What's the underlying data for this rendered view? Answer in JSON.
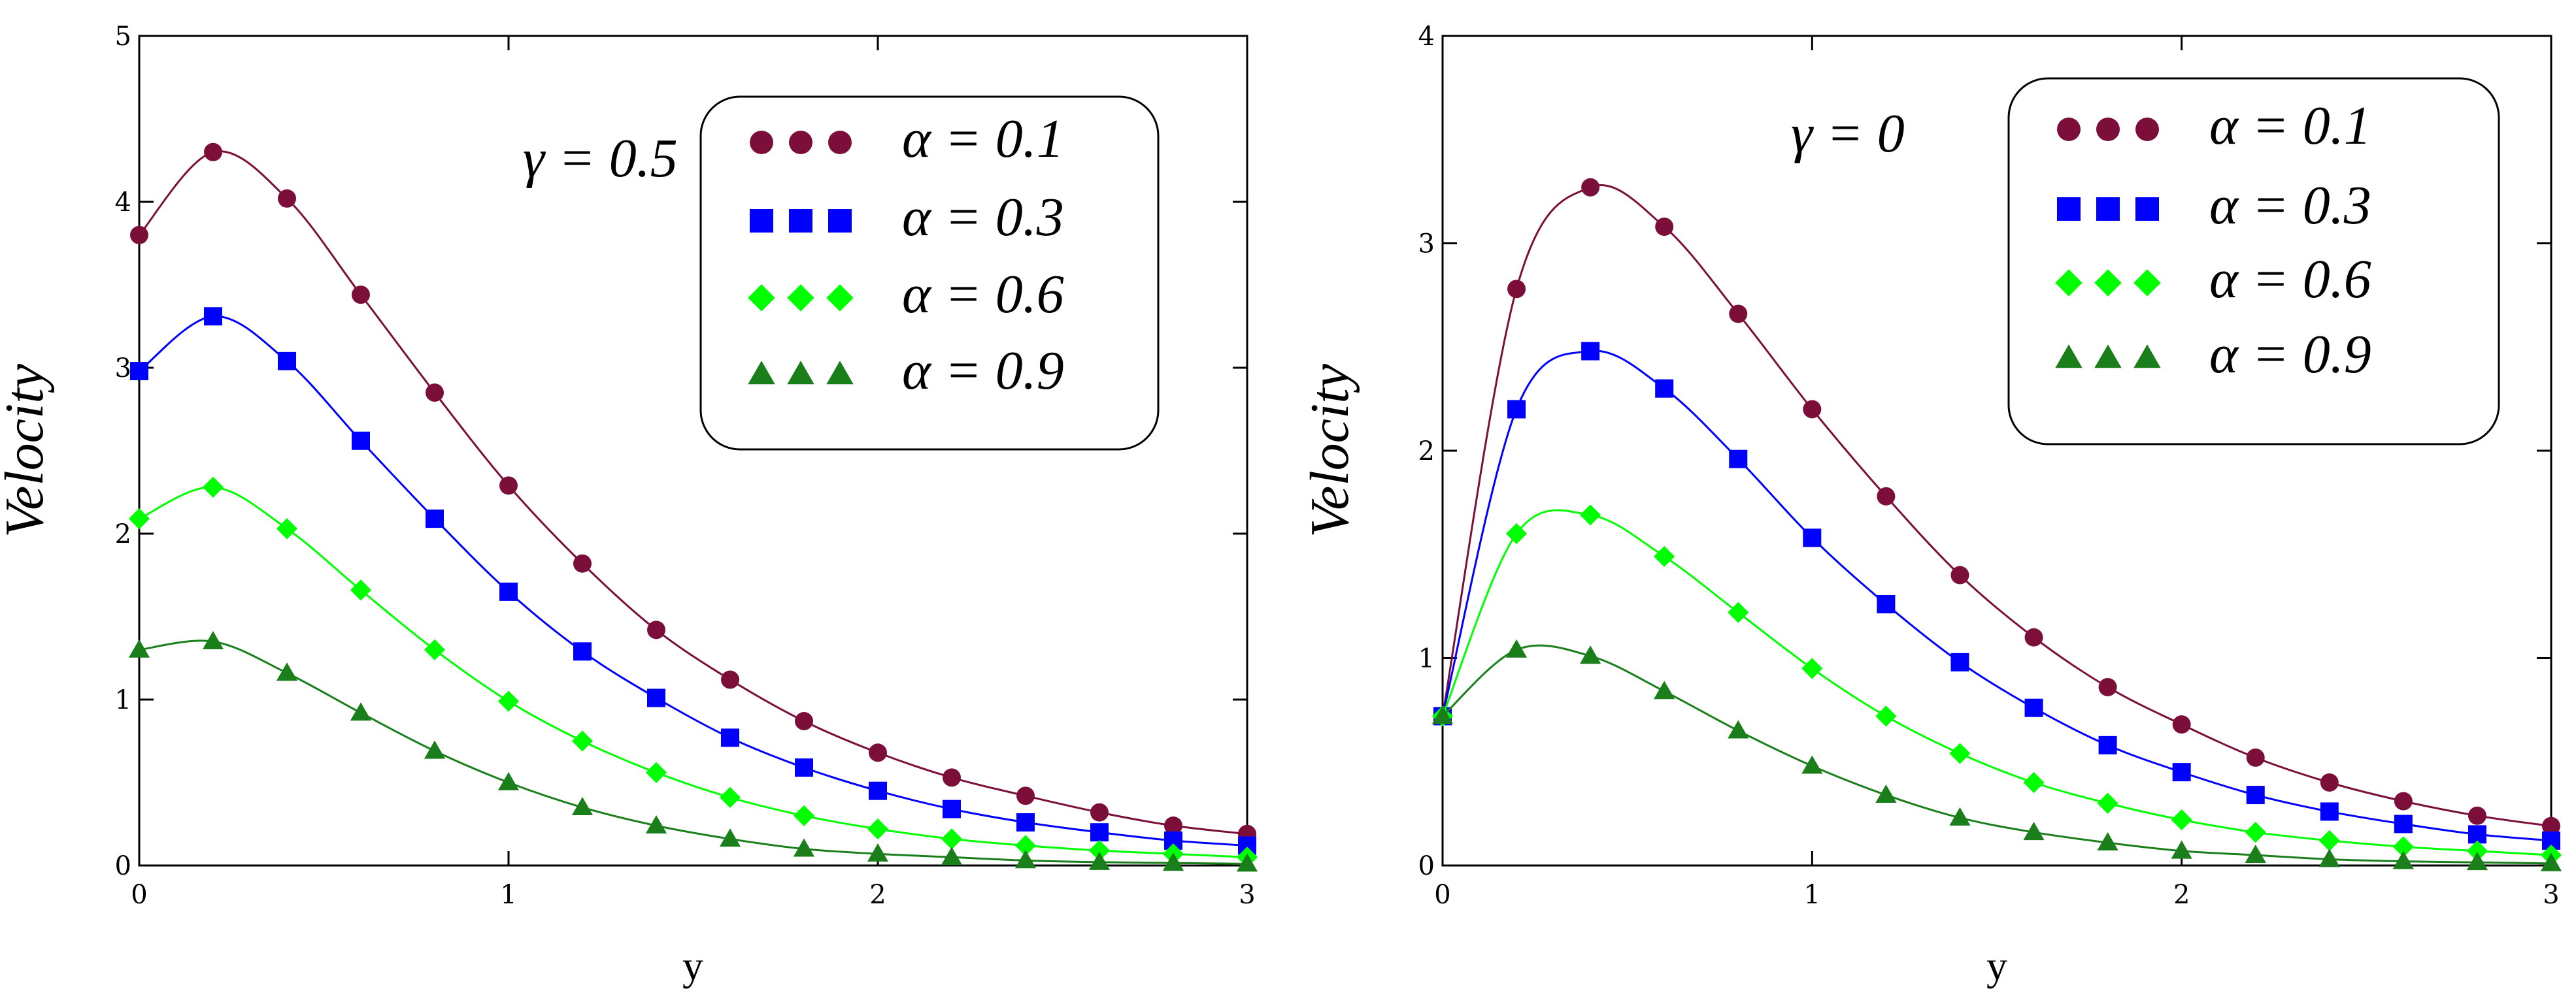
{
  "chart_data": [
    {
      "type": "line",
      "panel": "left",
      "annotation": "γ = 0.5",
      "xlabel": "y",
      "ylabel": "Velocity",
      "xlim": [
        0,
        3
      ],
      "ylim": [
        0,
        5
      ],
      "xticks": [
        "0",
        "1",
        "2",
        "3"
      ],
      "yticks": [
        "0",
        "1",
        "2",
        "3",
        "4",
        "5"
      ],
      "legend_position": "top-right",
      "series": [
        {
          "name": "α = 0.1",
          "marker": "circle",
          "color": "#7b0f3a",
          "x": [
            0,
            0.2,
            0.4,
            0.6,
            0.8,
            1.0,
            1.2,
            1.4,
            1.6,
            1.8,
            2.0,
            2.2,
            2.4,
            2.6,
            2.8,
            3.0
          ],
          "y": [
            3.8,
            4.3,
            4.02,
            3.44,
            2.85,
            2.29,
            1.82,
            1.42,
            1.12,
            0.87,
            0.68,
            0.53,
            0.42,
            0.32,
            0.24,
            0.19
          ]
        },
        {
          "name": "α = 0.3",
          "marker": "square",
          "color": "#0000ff",
          "x": [
            0,
            0.2,
            0.4,
            0.6,
            0.8,
            1.0,
            1.2,
            1.4,
            1.6,
            1.8,
            2.0,
            2.2,
            2.4,
            2.6,
            2.8,
            3.0
          ],
          "y": [
            2.98,
            3.31,
            3.04,
            2.56,
            2.09,
            1.65,
            1.29,
            1.01,
            0.77,
            0.59,
            0.45,
            0.34,
            0.26,
            0.2,
            0.15,
            0.12
          ]
        },
        {
          "name": "α = 0.6",
          "marker": "diamond",
          "color": "#00ff00",
          "x": [
            0,
            0.2,
            0.4,
            0.6,
            0.8,
            1.0,
            1.2,
            1.4,
            1.6,
            1.8,
            2.0,
            2.2,
            2.4,
            2.6,
            2.8,
            3.0
          ],
          "y": [
            2.09,
            2.28,
            2.03,
            1.66,
            1.3,
            0.99,
            0.75,
            0.56,
            0.41,
            0.3,
            0.22,
            0.16,
            0.12,
            0.09,
            0.07,
            0.05
          ]
        },
        {
          "name": "α = 0.9",
          "marker": "triangle",
          "color": "#1a7f1a",
          "x": [
            0,
            0.2,
            0.4,
            0.6,
            0.8,
            1.0,
            1.2,
            1.4,
            1.6,
            1.8,
            2.0,
            2.2,
            2.4,
            2.6,
            2.8,
            3.0
          ],
          "y": [
            1.3,
            1.35,
            1.16,
            0.92,
            0.69,
            0.5,
            0.35,
            0.24,
            0.16,
            0.1,
            0.07,
            0.05,
            0.03,
            0.02,
            0.015,
            0.01
          ]
        }
      ]
    },
    {
      "type": "line",
      "panel": "right",
      "annotation": "γ = 0",
      "xlabel": "y",
      "ylabel": "Velocity",
      "xlim": [
        0,
        3
      ],
      "ylim": [
        0,
        4
      ],
      "xticks": [
        "0",
        "1",
        "2",
        "3"
      ],
      "yticks": [
        "0",
        "1",
        "2",
        "3",
        "4"
      ],
      "legend_position": "top-right",
      "series": [
        {
          "name": "α = 0.1",
          "marker": "circle",
          "color": "#7b0f3a",
          "x": [
            0,
            0.2,
            0.4,
            0.6,
            0.8,
            1.0,
            1.2,
            1.4,
            1.6,
            1.8,
            2.0,
            2.2,
            2.4,
            2.6,
            2.8,
            3.0
          ],
          "y": [
            0.72,
            2.78,
            3.27,
            3.08,
            2.66,
            2.2,
            1.78,
            1.4,
            1.1,
            0.86,
            0.68,
            0.52,
            0.4,
            0.31,
            0.24,
            0.19
          ]
        },
        {
          "name": "α = 0.3",
          "marker": "square",
          "color": "#0000ff",
          "x": [
            0,
            0.2,
            0.4,
            0.6,
            0.8,
            1.0,
            1.2,
            1.4,
            1.6,
            1.8,
            2.0,
            2.2,
            2.4,
            2.6,
            2.8,
            3.0
          ],
          "y": [
            0.72,
            2.2,
            2.48,
            2.3,
            1.96,
            1.58,
            1.26,
            0.98,
            0.76,
            0.58,
            0.45,
            0.34,
            0.26,
            0.2,
            0.15,
            0.12
          ]
        },
        {
          "name": "α = 0.6",
          "marker": "diamond",
          "color": "#00ff00",
          "x": [
            0,
            0.2,
            0.4,
            0.6,
            0.8,
            1.0,
            1.2,
            1.4,
            1.6,
            1.8,
            2.0,
            2.2,
            2.4,
            2.6,
            2.8,
            3.0
          ],
          "y": [
            0.72,
            1.6,
            1.69,
            1.49,
            1.22,
            0.95,
            0.72,
            0.54,
            0.4,
            0.3,
            0.22,
            0.16,
            0.12,
            0.09,
            0.07,
            0.05
          ]
        },
        {
          "name": "α = 0.9",
          "marker": "triangle",
          "color": "#1a7f1a",
          "x": [
            0,
            0.2,
            0.4,
            0.6,
            0.8,
            1.0,
            1.2,
            1.4,
            1.6,
            1.8,
            2.0,
            2.2,
            2.4,
            2.6,
            2.8,
            3.0
          ],
          "y": [
            0.72,
            1.04,
            1.01,
            0.84,
            0.65,
            0.48,
            0.34,
            0.23,
            0.16,
            0.11,
            0.07,
            0.05,
            0.03,
            0.02,
            0.015,
            0.01
          ]
        }
      ]
    }
  ]
}
